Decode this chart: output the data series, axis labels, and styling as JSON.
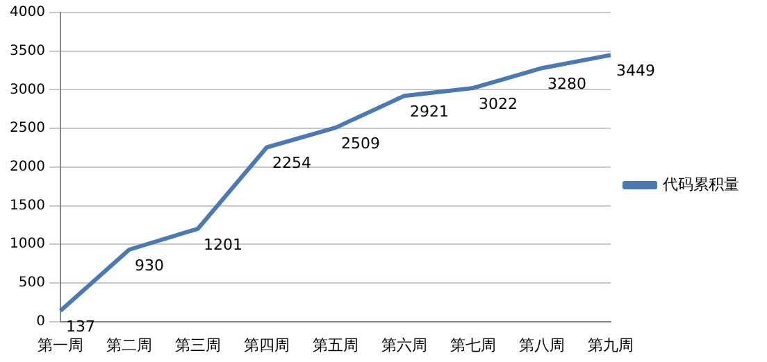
{
  "chart_data": {
    "type": "line",
    "categories": [
      "第一周",
      "第二周",
      "第三周",
      "第四周",
      "第五周",
      "第六周",
      "第七周",
      "第八周",
      "第九周"
    ],
    "series": [
      {
        "name": "代码累积量",
        "color": "#4a7ab5",
        "values": [
          137,
          930,
          1201,
          2254,
          2509,
          2921,
          3022,
          3280,
          3449
        ]
      }
    ],
    "ylim": [
      0,
      4000
    ],
    "yticks": [
      0,
      500,
      1000,
      1500,
      2000,
      2500,
      3000,
      3500,
      4000
    ],
    "grid": "y",
    "legend": "right",
    "data_labels": true,
    "marker": "none",
    "line_style": "solid"
  }
}
